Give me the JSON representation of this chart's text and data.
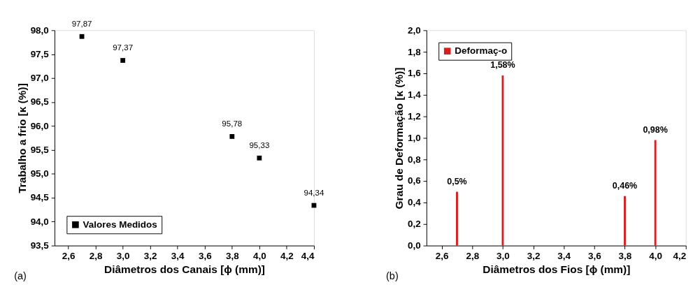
{
  "chart_data": [
    {
      "type": "scatter",
      "xlabel": "Diâmetros dos Canais [ϕ (mm)]",
      "ylabel": "Trabalho a frio [κ (%)]",
      "annotations": [
        "(a)"
      ],
      "x": [
        2.7,
        3.0,
        3.8,
        4.0,
        4.4
      ],
      "series": [
        {
          "name": "Valores Medidos",
          "color": "#000000",
          "values": [
            97.87,
            97.37,
            95.78,
            95.33,
            94.34
          ],
          "value_labels": [
            "97,87",
            "97,37",
            "95,78",
            "95,33",
            "94,34"
          ]
        }
      ],
      "marker": "square",
      "legend": "bottom left",
      "grid": false,
      "xlim": [
        2.5,
        4.4
      ],
      "ylim": [
        93.5,
        98.0
      ],
      "xticks": [
        {
          "value": 2.6,
          "label": "2,6"
        },
        {
          "value": 2.8,
          "label": "2,8"
        },
        {
          "value": 3.0,
          "label": "3,0"
        },
        {
          "value": 3.2,
          "label": "3,2"
        },
        {
          "value": 3.4,
          "label": "3,4"
        },
        {
          "value": 3.6,
          "label": "3,6"
        },
        {
          "value": 3.8,
          "label": "3,8"
        },
        {
          "value": 4.0,
          "label": "4,0"
        },
        {
          "value": 4.2,
          "label": "4,2"
        },
        {
          "value": 4.4,
          "label": "4,4"
        }
      ],
      "yticks": [
        {
          "value": 93.5,
          "label": "93,5"
        },
        {
          "value": 94.0,
          "label": "94,0"
        },
        {
          "value": 94.5,
          "label": "94,5"
        },
        {
          "value": 95.0,
          "label": "95,0"
        },
        {
          "value": 95.5,
          "label": "95,5"
        },
        {
          "value": 96.0,
          "label": "96,0"
        },
        {
          "value": 96.5,
          "label": "96,5"
        },
        {
          "value": 97.0,
          "label": "97,0"
        },
        {
          "value": 97.5,
          "label": "97,5"
        },
        {
          "value": 98.0,
          "label": "98,0"
        }
      ]
    },
    {
      "type": "bar",
      "xlabel": "Diâmetros dos Fios [ϕ (mm)]",
      "ylabel": "Grau de Deformação [κ (%)]",
      "annotations": [
        "(b)"
      ],
      "x": [
        2.7,
        3.0,
        3.8,
        4.0
      ],
      "series": [
        {
          "name": "Deformaç-o",
          "color": "#d42020",
          "values": [
            0.5,
            1.58,
            0.46,
            0.98
          ],
          "value_labels": [
            "0,5%",
            "1,58%",
            "0,46%",
            "0,98%"
          ]
        }
      ],
      "legend": "top left",
      "grid": false,
      "xlim": [
        2.5,
        4.2
      ],
      "ylim": [
        0.0,
        2.0
      ],
      "xticks": [
        {
          "value": 2.6,
          "label": "2,6"
        },
        {
          "value": 2.8,
          "label": "2,8"
        },
        {
          "value": 3.0,
          "label": "3,0"
        },
        {
          "value": 3.2,
          "label": "3,2"
        },
        {
          "value": 3.4,
          "label": "3,4"
        },
        {
          "value": 3.6,
          "label": "3,6"
        },
        {
          "value": 3.8,
          "label": "3,8"
        },
        {
          "value": 4.0,
          "label": "4,0"
        },
        {
          "value": 4.2,
          "label": "4,2"
        }
      ],
      "yticks": [
        {
          "value": 0.0,
          "label": "0,0"
        },
        {
          "value": 0.2,
          "label": "0,2"
        },
        {
          "value": 0.4,
          "label": "0,4"
        },
        {
          "value": 0.6,
          "label": "0,6"
        },
        {
          "value": 0.8,
          "label": "0,8"
        },
        {
          "value": 1.0,
          "label": "1,0"
        },
        {
          "value": 1.2,
          "label": "1,2"
        },
        {
          "value": 1.4,
          "label": "1,4"
        },
        {
          "value": 1.6,
          "label": "1,6"
        },
        {
          "value": 1.8,
          "label": "1,8"
        },
        {
          "value": 2.0,
          "label": "2,0"
        }
      ]
    }
  ]
}
